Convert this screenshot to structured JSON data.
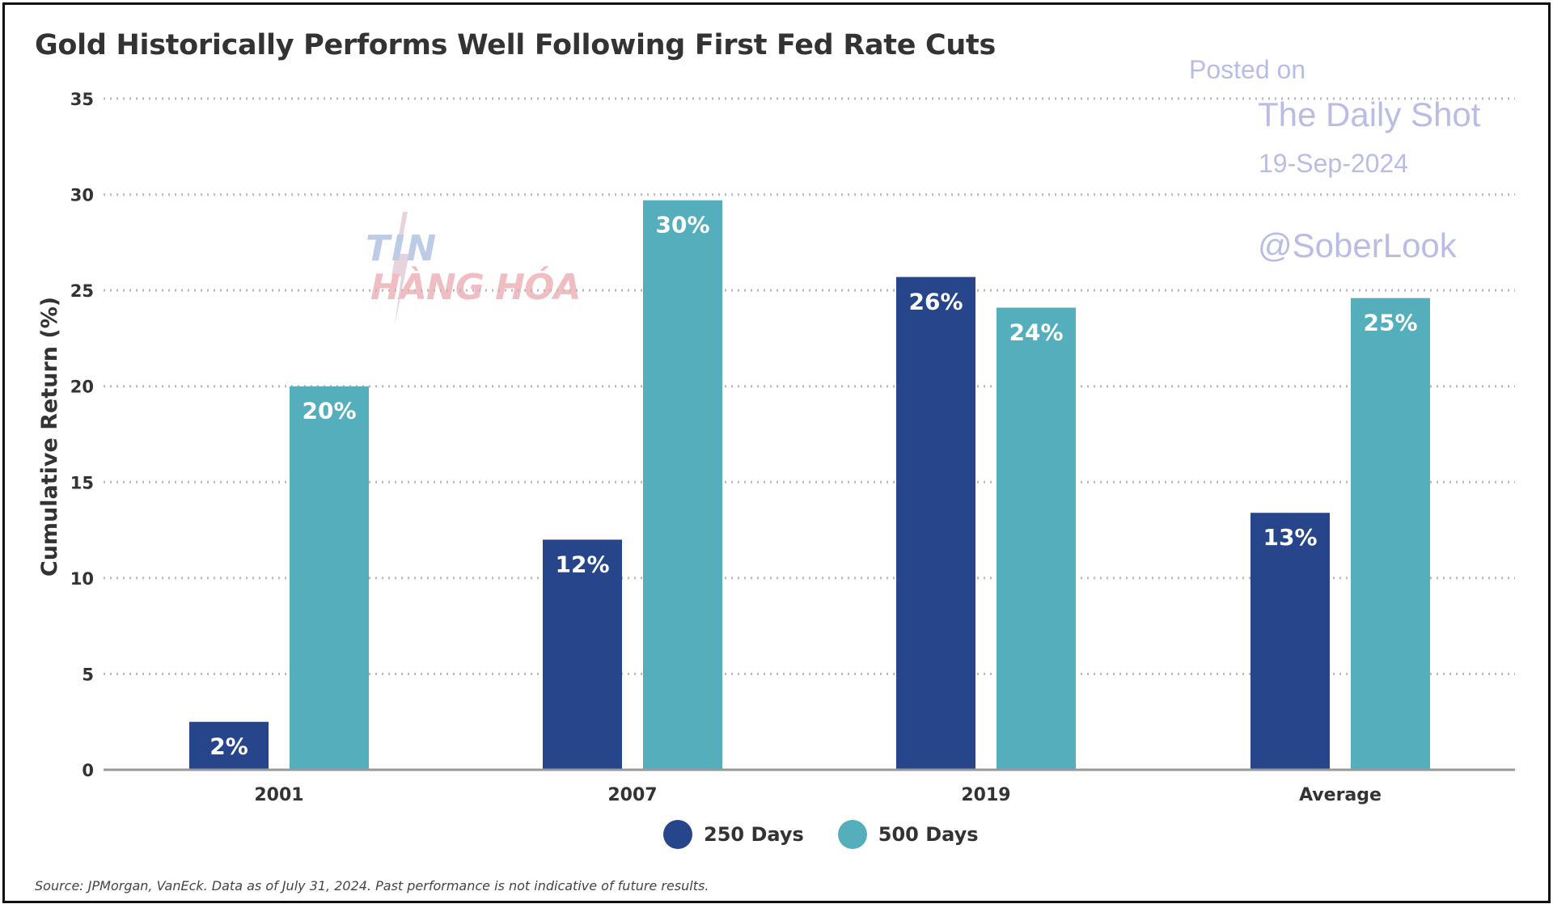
{
  "colors": {
    "series_250": "#26458a",
    "series_500": "#55aebb",
    "grid": "#b8b8b8",
    "axis": "#999999",
    "watermark": "#b9bde6"
  },
  "chart_data": {
    "type": "bar",
    "title": "Gold Historically Performs Well Following First Fed Rate Cuts",
    "xlabel": "",
    "ylabel": "Cumulative Return (%)",
    "ylim": [
      0,
      35
    ],
    "yticks": [
      0,
      5,
      10,
      15,
      20,
      25,
      30,
      35
    ],
    "grid": true,
    "legend_position": "bottom",
    "categories": [
      "2001",
      "2007",
      "2019",
      "Average"
    ],
    "series": [
      {
        "name": "250 Days",
        "values": [
          2.5,
          12.0,
          25.7,
          13.4
        ],
        "labels": [
          "2%",
          "12%",
          "26%",
          "13%"
        ]
      },
      {
        "name": "500 Days",
        "values": [
          20.0,
          29.7,
          24.1,
          24.6
        ],
        "labels": [
          "20%",
          "30%",
          "24%",
          "25%"
        ]
      }
    ]
  },
  "source_note": "Source: JPMorgan, VanEck. Data as of July 31, 2024. Past performance is not indicative of future results.",
  "watermark": {
    "posted_on": "Posted on",
    "publication": "The Daily Shot",
    "date": "19-Sep-2024",
    "handle": "@SoberLook"
  },
  "logo": {
    "line1": "TIN",
    "line2": "HÀNG HÓA"
  }
}
